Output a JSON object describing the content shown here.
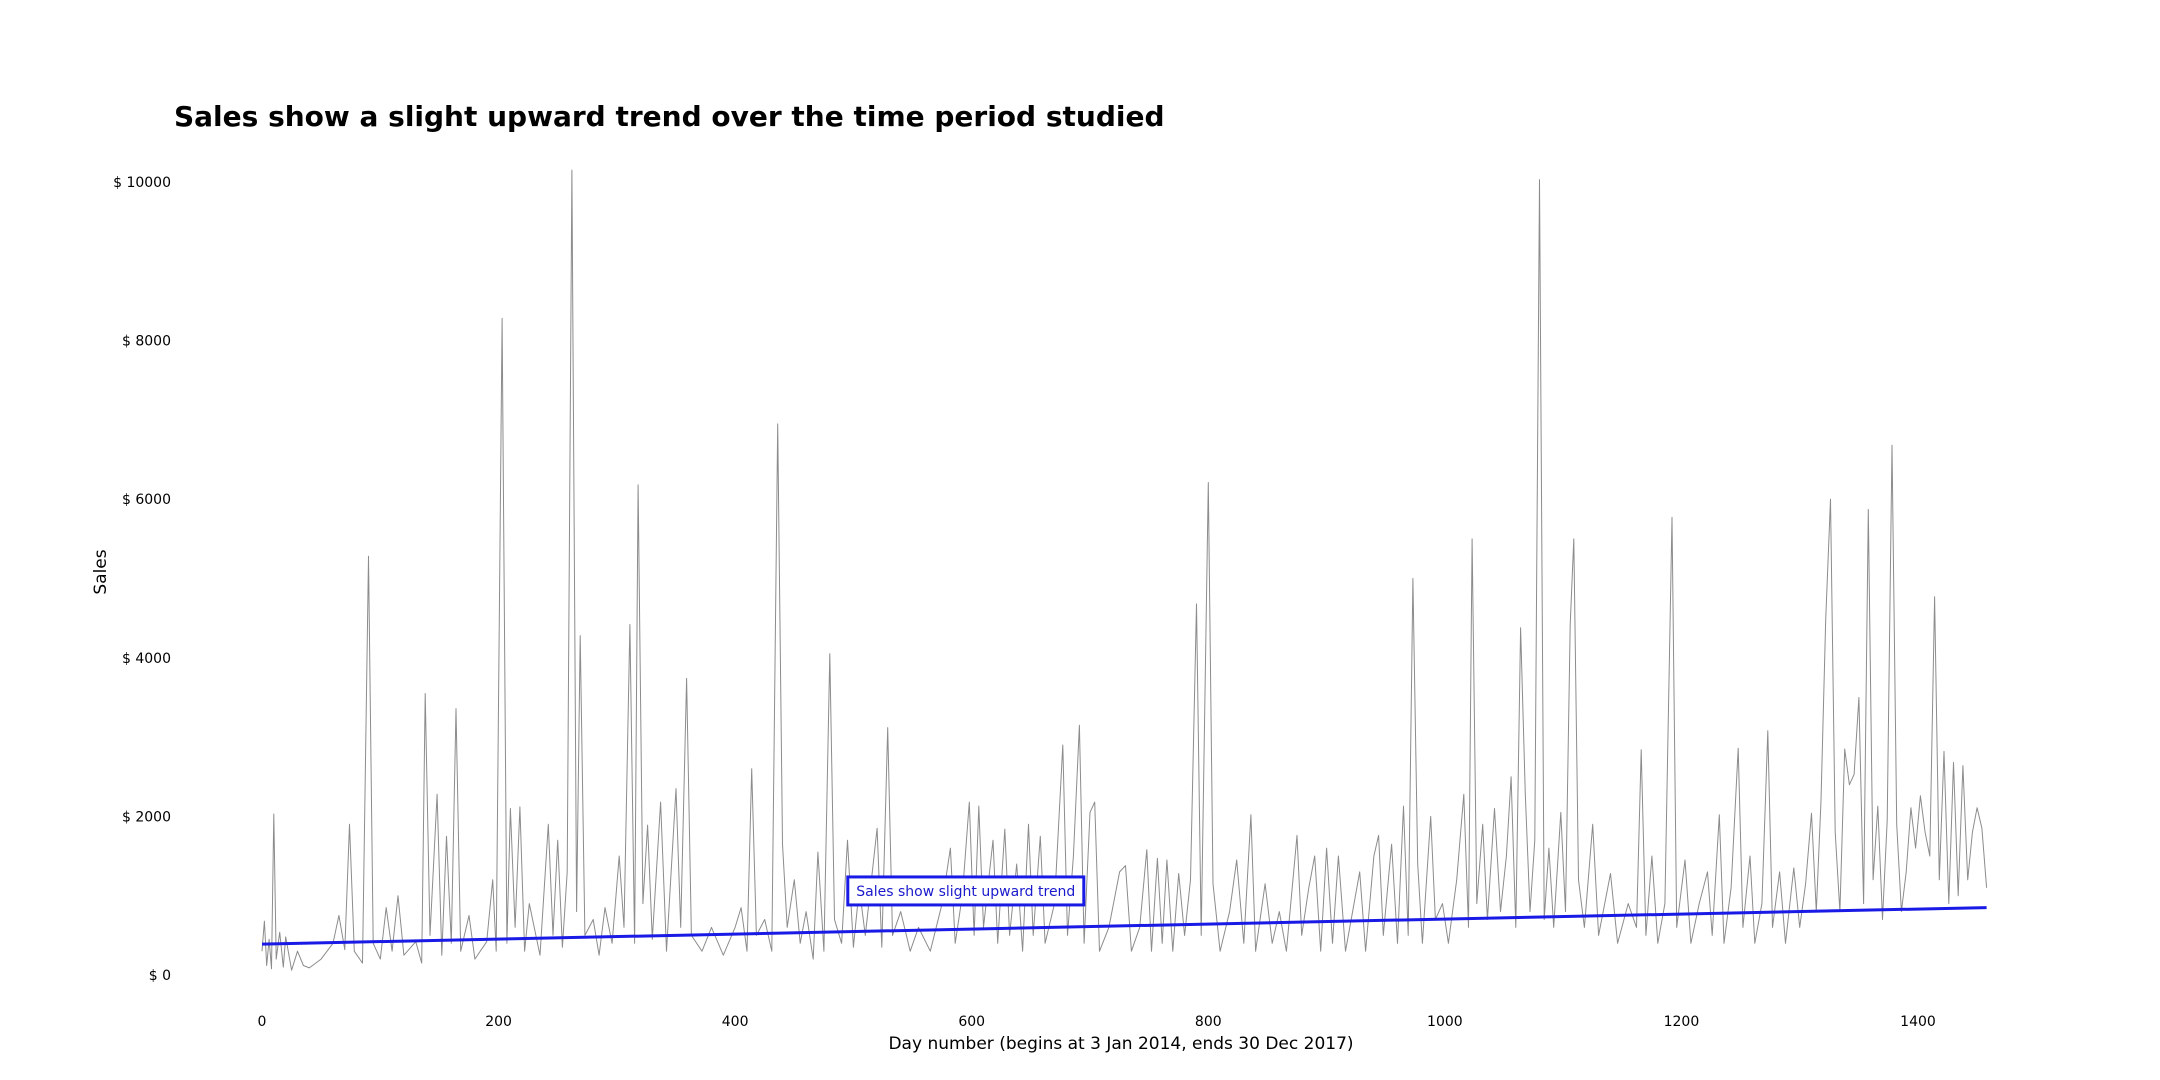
{
  "chart_data": {
    "type": "line",
    "title": "Sales show a slight upward trend over the time period studied",
    "xlabel": "Day number (begins at 3 Jan 2014, ends 30 Dec 2017)",
    "ylabel": "Sales",
    "xlim": [
      0,
      1460
    ],
    "ylim": [
      0,
      10000
    ],
    "x_ticks": [
      0,
      200,
      400,
      600,
      800,
      1000,
      1200,
      1400
    ],
    "y_ticks": [
      0,
      2000,
      4000,
      6000,
      8000,
      10000
    ],
    "x_tick_labels": [
      "0",
      "200",
      "400",
      "600",
      "800",
      "1000",
      "1200",
      "1400"
    ],
    "y_tick_labels": [
      "$ 0",
      "$ 2000",
      "$ 4000",
      "$ 6000",
      "$ 8000",
      "$ 10000"
    ],
    "grid": false,
    "series": [
      {
        "kind": "daily-sales",
        "color": "#8c8c8c",
        "points": [
          [
            0,
            300
          ],
          [
            2,
            680
          ],
          [
            4,
            120
          ],
          [
            6,
            450
          ],
          [
            8,
            80
          ],
          [
            10,
            2030
          ],
          [
            12,
            200
          ],
          [
            15,
            540
          ],
          [
            18,
            100
          ],
          [
            20,
            480
          ],
          [
            25,
            60
          ],
          [
            30,
            300
          ],
          [
            35,
            120
          ],
          [
            40,
            90
          ],
          [
            50,
            200
          ],
          [
            60,
            400
          ],
          [
            65,
            750
          ],
          [
            70,
            320
          ],
          [
            74,
            1900
          ],
          [
            78,
            300
          ],
          [
            85,
            150
          ],
          [
            90,
            5280
          ],
          [
            94,
            400
          ],
          [
            100,
            200
          ],
          [
            105,
            850
          ],
          [
            110,
            300
          ],
          [
            115,
            1000
          ],
          [
            120,
            250
          ],
          [
            130,
            420
          ],
          [
            135,
            150
          ],
          [
            138,
            3550
          ],
          [
            142,
            500
          ],
          [
            148,
            2280
          ],
          [
            152,
            250
          ],
          [
            156,
            1750
          ],
          [
            160,
            400
          ],
          [
            164,
            3360
          ],
          [
            168,
            300
          ],
          [
            175,
            750
          ],
          [
            180,
            200
          ],
          [
            190,
            420
          ],
          [
            195,
            1200
          ],
          [
            198,
            300
          ],
          [
            203,
            8280
          ],
          [
            207,
            400
          ],
          [
            210,
            2100
          ],
          [
            214,
            600
          ],
          [
            218,
            2120
          ],
          [
            222,
            300
          ],
          [
            226,
            900
          ],
          [
            235,
            250
          ],
          [
            242,
            1900
          ],
          [
            246,
            500
          ],
          [
            250,
            1700
          ],
          [
            254,
            350
          ],
          [
            258,
            1300
          ],
          [
            262,
            10150
          ],
          [
            266,
            800
          ],
          [
            269,
            4280
          ],
          [
            273,
            500
          ],
          [
            280,
            700
          ],
          [
            285,
            250
          ],
          [
            290,
            850
          ],
          [
            296,
            400
          ],
          [
            302,
            1500
          ],
          [
            306,
            600
          ],
          [
            311,
            4420
          ],
          [
            315,
            400
          ],
          [
            318,
            6180
          ],
          [
            322,
            900
          ],
          [
            326,
            1890
          ],
          [
            330,
            450
          ],
          [
            337,
            2180
          ],
          [
            342,
            300
          ],
          [
            350,
            2350
          ],
          [
            354,
            600
          ],
          [
            359,
            3740
          ],
          [
            363,
            500
          ],
          [
            372,
            300
          ],
          [
            380,
            600
          ],
          [
            390,
            250
          ],
          [
            400,
            600
          ],
          [
            405,
            850
          ],
          [
            410,
            300
          ],
          [
            414,
            2600
          ],
          [
            418,
            500
          ],
          [
            425,
            700
          ],
          [
            431,
            300
          ],
          [
            436,
            6950
          ],
          [
            440,
            1650
          ],
          [
            444,
            600
          ],
          [
            450,
            1200
          ],
          [
            455,
            400
          ],
          [
            460,
            800
          ],
          [
            466,
            200
          ],
          [
            470,
            1550
          ],
          [
            475,
            300
          ],
          [
            480,
            4050
          ],
          [
            484,
            700
          ],
          [
            490,
            400
          ],
          [
            495,
            1700
          ],
          [
            500,
            350
          ],
          [
            505,
            1100
          ],
          [
            510,
            500
          ],
          [
            520,
            1850
          ],
          [
            524,
            350
          ],
          [
            529,
            3120
          ],
          [
            533,
            500
          ],
          [
            540,
            800
          ],
          [
            548,
            300
          ],
          [
            555,
            600
          ],
          [
            565,
            300
          ],
          [
            575,
            900
          ],
          [
            582,
            1600
          ],
          [
            586,
            400
          ],
          [
            592,
            1000
          ],
          [
            598,
            2180
          ],
          [
            602,
            500
          ],
          [
            606,
            2130
          ],
          [
            610,
            600
          ],
          [
            618,
            1700
          ],
          [
            622,
            400
          ],
          [
            628,
            1840
          ],
          [
            632,
            500
          ],
          [
            638,
            1400
          ],
          [
            643,
            300
          ],
          [
            648,
            1900
          ],
          [
            652,
            500
          ],
          [
            658,
            1750
          ],
          [
            662,
            400
          ],
          [
            670,
            900
          ],
          [
            677,
            2900
          ],
          [
            681,
            500
          ],
          [
            686,
            1500
          ],
          [
            691,
            3150
          ],
          [
            695,
            400
          ],
          [
            700,
            2050
          ],
          [
            704,
            2180
          ],
          [
            708,
            300
          ],
          [
            716,
            600
          ],
          [
            725,
            1300
          ],
          [
            730,
            1380
          ],
          [
            735,
            300
          ],
          [
            742,
            600
          ],
          [
            748,
            1580
          ],
          [
            752,
            300
          ],
          [
            757,
            1470
          ],
          [
            761,
            400
          ],
          [
            765,
            1450
          ],
          [
            770,
            300
          ],
          [
            775,
            1280
          ],
          [
            780,
            500
          ],
          [
            785,
            1200
          ],
          [
            790,
            4680
          ],
          [
            794,
            500
          ],
          [
            800,
            6210
          ],
          [
            804,
            1150
          ],
          [
            810,
            300
          ],
          [
            818,
            800
          ],
          [
            824,
            1450
          ],
          [
            830,
            400
          ],
          [
            836,
            2020
          ],
          [
            840,
            300
          ],
          [
            848,
            1150
          ],
          [
            854,
            400
          ],
          [
            860,
            800
          ],
          [
            866,
            300
          ],
          [
            875,
            1760
          ],
          [
            879,
            500
          ],
          [
            885,
            1100
          ],
          [
            890,
            1500
          ],
          [
            895,
            300
          ],
          [
            900,
            1600
          ],
          [
            905,
            400
          ],
          [
            910,
            1500
          ],
          [
            916,
            300
          ],
          [
            922,
            800
          ],
          [
            928,
            1300
          ],
          [
            933,
            300
          ],
          [
            940,
            1500
          ],
          [
            944,
            1760
          ],
          [
            948,
            500
          ],
          [
            955,
            1650
          ],
          [
            960,
            400
          ],
          [
            965,
            2130
          ],
          [
            969,
            500
          ],
          [
            973,
            5000
          ],
          [
            977,
            1400
          ],
          [
            981,
            400
          ],
          [
            988,
            2000
          ],
          [
            992,
            700
          ],
          [
            998,
            900
          ],
          [
            1003,
            400
          ],
          [
            1010,
            1200
          ],
          [
            1016,
            2280
          ],
          [
            1020,
            600
          ],
          [
            1023,
            5500
          ],
          [
            1027,
            900
          ],
          [
            1032,
            1900
          ],
          [
            1036,
            700
          ],
          [
            1042,
            2100
          ],
          [
            1047,
            800
          ],
          [
            1052,
            1500
          ],
          [
            1056,
            2500
          ],
          [
            1060,
            600
          ],
          [
            1064,
            4380
          ],
          [
            1068,
            2280
          ],
          [
            1072,
            800
          ],
          [
            1076,
            1700
          ],
          [
            1080,
            10030
          ],
          [
            1084,
            700
          ],
          [
            1088,
            1600
          ],
          [
            1092,
            600
          ],
          [
            1098,
            2050
          ],
          [
            1102,
            800
          ],
          [
            1106,
            4420
          ],
          [
            1109,
            5500
          ],
          [
            1113,
            1200
          ],
          [
            1118,
            600
          ],
          [
            1125,
            1900
          ],
          [
            1130,
            500
          ],
          [
            1140,
            1280
          ],
          [
            1146,
            400
          ],
          [
            1155,
            900
          ],
          [
            1162,
            600
          ],
          [
            1166,
            2840
          ],
          [
            1170,
            500
          ],
          [
            1175,
            1500
          ],
          [
            1180,
            400
          ],
          [
            1186,
            900
          ],
          [
            1192,
            5770
          ],
          [
            1196,
            600
          ],
          [
            1203,
            1450
          ],
          [
            1208,
            400
          ],
          [
            1215,
            900
          ],
          [
            1222,
            1300
          ],
          [
            1226,
            500
          ],
          [
            1232,
            2020
          ],
          [
            1236,
            400
          ],
          [
            1242,
            1100
          ],
          [
            1248,
            2860
          ],
          [
            1252,
            600
          ],
          [
            1258,
            1500
          ],
          [
            1262,
            400
          ],
          [
            1268,
            900
          ],
          [
            1273,
            3080
          ],
          [
            1277,
            600
          ],
          [
            1283,
            1300
          ],
          [
            1288,
            400
          ],
          [
            1295,
            1350
          ],
          [
            1300,
            600
          ],
          [
            1305,
            1150
          ],
          [
            1310,
            2040
          ],
          [
            1314,
            800
          ],
          [
            1318,
            2200
          ],
          [
            1322,
            4480
          ],
          [
            1326,
            6000
          ],
          [
            1330,
            1800
          ],
          [
            1334,
            800
          ],
          [
            1338,
            2850
          ],
          [
            1342,
            2400
          ],
          [
            1346,
            2530
          ],
          [
            1350,
            3500
          ],
          [
            1354,
            900
          ],
          [
            1358,
            5870
          ],
          [
            1362,
            1200
          ],
          [
            1366,
            2130
          ],
          [
            1370,
            700
          ],
          [
            1374,
            1950
          ],
          [
            1378,
            6680
          ],
          [
            1382,
            1900
          ],
          [
            1386,
            800
          ],
          [
            1390,
            1300
          ],
          [
            1394,
            2110
          ],
          [
            1398,
            1600
          ],
          [
            1402,
            2260
          ],
          [
            1406,
            1800
          ],
          [
            1410,
            1500
          ],
          [
            1414,
            4770
          ],
          [
            1418,
            1200
          ],
          [
            1422,
            2820
          ],
          [
            1426,
            900
          ],
          [
            1430,
            2680
          ],
          [
            1434,
            1000
          ],
          [
            1438,
            2640
          ],
          [
            1442,
            1200
          ],
          [
            1446,
            1800
          ],
          [
            1450,
            2110
          ],
          [
            1454,
            1850
          ],
          [
            1458,
            1100
          ]
        ]
      },
      {
        "kind": "trend",
        "color": "#1a1ae6",
        "points": [
          [
            0,
            390
          ],
          [
            1458,
            850
          ]
        ]
      }
    ],
    "annotation": {
      "text": "Sales show slight upward trend",
      "x": 595,
      "y": 1060,
      "color": "#1a1acc"
    }
  }
}
